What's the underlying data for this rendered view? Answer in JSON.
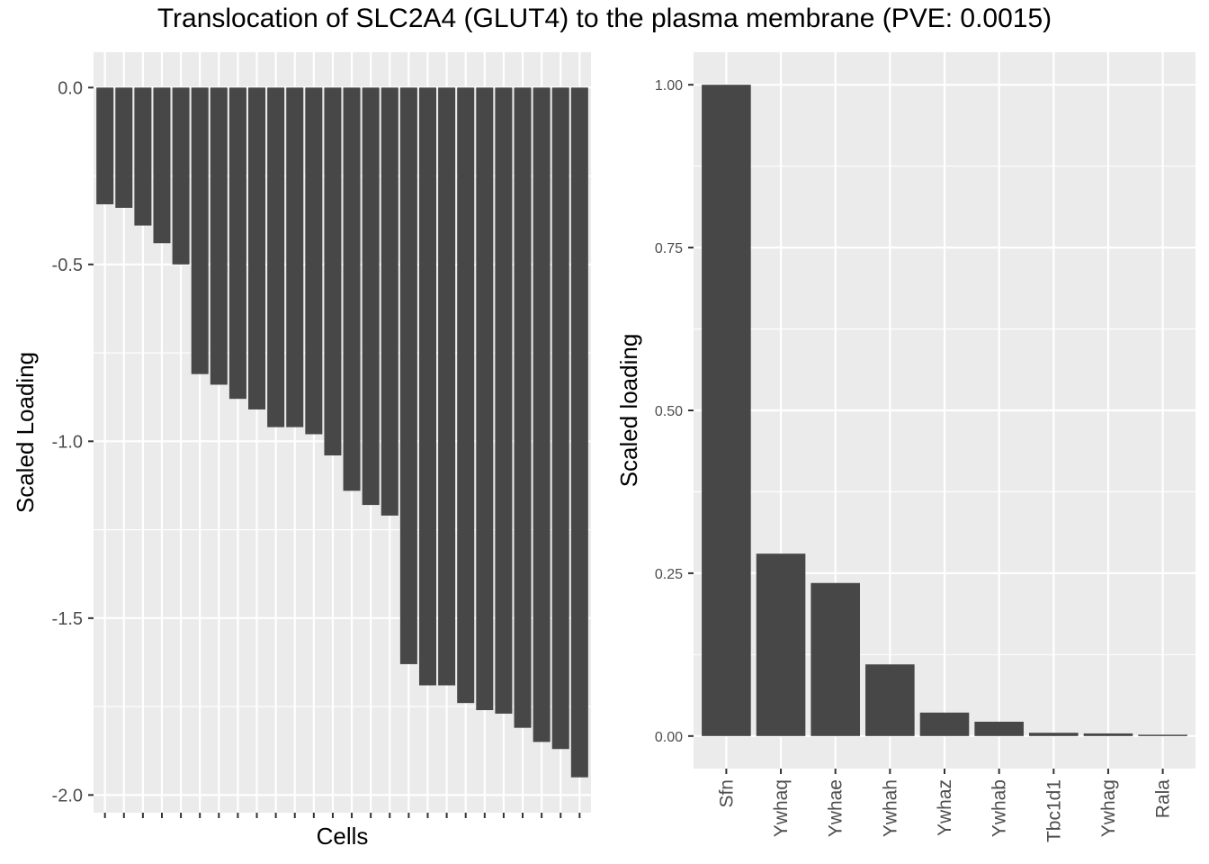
{
  "title": "Translocation of SLC2A4 (GLUT4) to the plasma membrane (PVE: 0.0015)",
  "colors": {
    "panel_bg": "#ebebeb",
    "grid": "#ffffff",
    "bar": "#474747",
    "tick_text": "#4d4d4d"
  },
  "chart_data": [
    {
      "type": "bar",
      "xlabel": "Cells",
      "ylabel": "Scaled Loading",
      "ylim": [
        -2.05,
        0.1
      ],
      "yticks": [
        0.0,
        -0.5,
        -1.0,
        -1.5,
        -2.0
      ],
      "ytick_labels": [
        "0.0",
        "-0.5",
        "-1.0",
        "-1.5",
        "-2.0"
      ],
      "x_tick_labels_shown": false,
      "values": [
        -0.33,
        -0.34,
        -0.39,
        -0.44,
        -0.5,
        -0.81,
        -0.84,
        -0.88,
        -0.91,
        -0.96,
        -0.96,
        -0.98,
        -1.04,
        -1.14,
        -1.18,
        -1.21,
        -1.63,
        -1.69,
        -1.69,
        -1.74,
        -1.76,
        -1.77,
        -1.81,
        -1.85,
        -1.87,
        -1.95
      ],
      "grid": true
    },
    {
      "type": "bar",
      "xlabel": "",
      "ylabel": "Scaled loading",
      "ylim": [
        -0.05,
        1.05
      ],
      "yticks": [
        0.0,
        0.25,
        0.5,
        0.75,
        1.0
      ],
      "ytick_labels": [
        "0.00",
        "0.25",
        "0.50",
        "0.75",
        "1.00"
      ],
      "categories": [
        "Sfn",
        "Ywhaq",
        "Ywhae",
        "Ywhah",
        "Ywhaz",
        "Ywhab",
        "Tbc1d1",
        "Ywhag",
        "Rala"
      ],
      "values": [
        1.0,
        0.28,
        0.235,
        0.11,
        0.036,
        0.022,
        0.005,
        0.004,
        0.002
      ],
      "grid": true
    }
  ]
}
